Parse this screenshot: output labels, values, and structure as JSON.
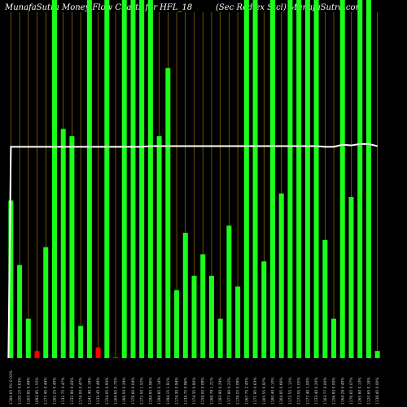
{
  "header": {
    "left": "MunafaSutra  Money Flow  Charts for HFL_18",
    "right": "(Sec Red  ex Stcl) MunafaSutra.com"
  },
  "colors": {
    "background": "#000000",
    "up": "#1aff1a",
    "down": "#ff0000",
    "grid": "#b8860b",
    "line": "#ffffff"
  },
  "chart_data": {
    "type": "bar",
    "title": "MunafaSutra  Money Flow  Charts for HFL_18",
    "subtitle": "(Sec Red  ex Stcl) MunafaSutra.com",
    "ylim": [
      0,
      100
    ],
    "categories": [
      "1160.65 5% 0.03%",
      "1150.15 0.63%",
      "1163.85 0.44%",
      "1093.95 1.55%",
      "1177.45 0.44%",
      "1165.25 0.40%",
      "1132.75 3.47%",
      "1132.90 0.43%",
      "1174.00 0.47%",
      "1141.40 0.18%",
      "1133.45 0.49%",
      "1154.05 0.93%",
      "1164.65 0.75%",
      "1166.50 0.29%",
      "1178.60 0.04%",
      "1172.50 1.52%",
      "1194.85 0.96%",
      "1194.85 0.14%",
      "1194.15 1.81%",
      "1174.30 0.94%",
      "1134.75 0.96%",
      "1174.35 0.80%",
      "1158.00 0.09%",
      "1168.79 1.21%",
      "1183.90 0.29%",
      "1177.80 0.22%",
      "1178.25 0.09%",
      "1167.75 2.45%",
      "1171.95 0.63%",
      "1165.55 0.97%",
      "1180.40 0.10%",
      "1164.85 0.66%",
      "1172.55 1.12%",
      "1173.05 0.05%",
      "1177.40 1.00%",
      "1133.40 0.20%",
      "1163.77 0.00%",
      "1156.83 0.00%",
      "1164.28 0.40%",
      "1176.65 0.07%",
      "1165.80 0.13%",
      "1120.65 0.18%",
      "1138.45 0.00%"
    ],
    "values": [
      44,
      26,
      11,
      2,
      31,
      100,
      64,
      62,
      9,
      100,
      3,
      100,
      0,
      100,
      100,
      100,
      100,
      62,
      81,
      19,
      35,
      23,
      29,
      23,
      11,
      37,
      20,
      100,
      100,
      27,
      100,
      46,
      100,
      100,
      100,
      100,
      33,
      11,
      100,
      45,
      100,
      100,
      2
    ],
    "directions": [
      "up",
      "up",
      "up",
      "down",
      "up",
      "up",
      "up",
      "up",
      "up",
      "up",
      "down",
      "up",
      "down",
      "up",
      "up",
      "up",
      "up",
      "up",
      "up",
      "up",
      "up",
      "up",
      "up",
      "up",
      "up",
      "up",
      "up",
      "up",
      "up",
      "up",
      "up",
      "up",
      "up",
      "up",
      "up",
      "up",
      "up",
      "up",
      "up",
      "up",
      "up",
      "up",
      "up"
    ],
    "series": [
      {
        "name": "price line",
        "values": [
          59.0,
          59.0,
          59.0,
          59.0,
          59.0,
          59.0,
          59.0,
          59.0,
          59.0,
          59.0,
          59.0,
          59.0,
          59.0,
          59.0,
          59.0,
          59.0,
          59.2,
          59.2,
          59.2,
          59.2,
          59.2,
          59.2,
          59.2,
          59.2,
          59.2,
          59.2,
          59.2,
          59.2,
          59.2,
          59.2,
          59.2,
          59.2,
          59.2,
          59.2,
          59.2,
          59.2,
          59.0,
          59.0,
          59.6,
          59.4,
          59.8,
          59.8,
          59.2
        ]
      }
    ],
    "grid": true,
    "legend": "none"
  }
}
